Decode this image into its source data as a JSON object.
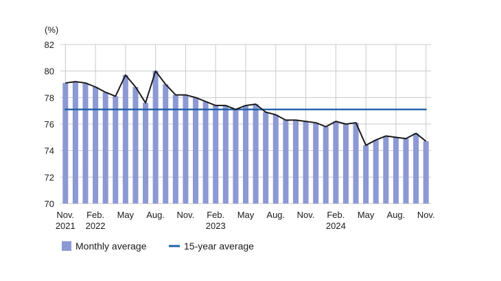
{
  "chart_data": {
    "type": "bar",
    "y_unit_label": "(%)",
    "ylim": [
      70,
      82
    ],
    "yticks": [
      70,
      72,
      74,
      76,
      78,
      80,
      82
    ],
    "grid": true,
    "legend_position": "bottom-left",
    "x_tick_labels": [
      {
        "index": 0,
        "lines": [
          "Nov.",
          "2021"
        ]
      },
      {
        "index": 3,
        "lines": [
          "Feb.",
          "2022"
        ]
      },
      {
        "index": 6,
        "lines": [
          "May"
        ]
      },
      {
        "index": 9,
        "lines": [
          "Aug."
        ]
      },
      {
        "index": 12,
        "lines": [
          "Nov."
        ]
      },
      {
        "index": 15,
        "lines": [
          "Feb.",
          "2023"
        ]
      },
      {
        "index": 18,
        "lines": [
          "May"
        ]
      },
      {
        "index": 21,
        "lines": [
          "Aug."
        ]
      },
      {
        "index": 24,
        "lines": [
          "Nov."
        ]
      },
      {
        "index": 27,
        "lines": [
          "Feb.",
          "2024"
        ]
      },
      {
        "index": 30,
        "lines": [
          "May"
        ]
      },
      {
        "index": 33,
        "lines": [
          "Aug."
        ]
      },
      {
        "index": 36,
        "lines": [
          "Nov."
        ]
      }
    ],
    "series": [
      {
        "name": "Monthly average",
        "kind": "bar",
        "color": "#8d99d3",
        "values": [
          79.1,
          79.2,
          79.1,
          78.8,
          78.4,
          78.1,
          79.7,
          78.8,
          77.6,
          80.0,
          79.0,
          78.2,
          78.2,
          78.0,
          77.7,
          77.4,
          77.4,
          77.1,
          77.4,
          77.5,
          76.9,
          76.7,
          76.3,
          76.3,
          76.2,
          76.1,
          75.8,
          76.2,
          76.0,
          76.1,
          74.4,
          74.8,
          75.1,
          75.0,
          74.9,
          75.3,
          74.7
        ]
      },
      {
        "name": "15-year average",
        "kind": "line",
        "color": "#1f5fa8",
        "value": 77.1
      }
    ],
    "line_color": "#1a1a1a"
  },
  "legend": {
    "monthly_label": "Monthly average",
    "fifteen_year_label": "15-year average"
  }
}
